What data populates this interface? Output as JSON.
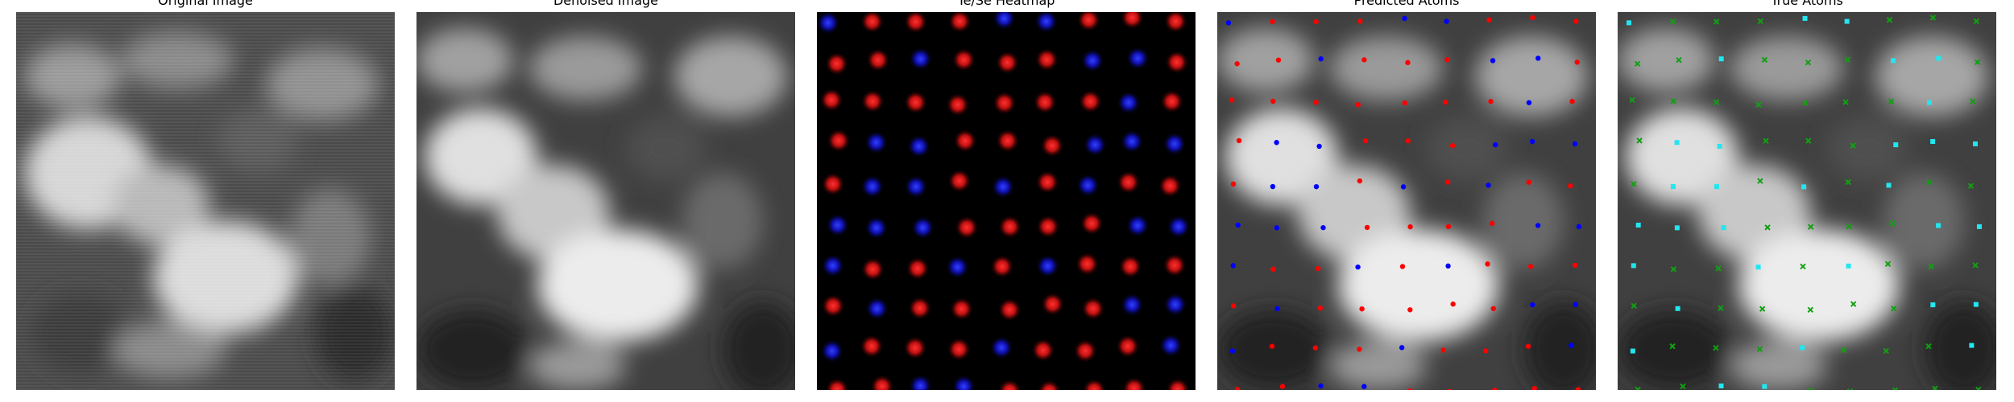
{
  "figure": {
    "panels": [
      {
        "id": "original",
        "title": "Original Image",
        "image_type": "grayscale-stm"
      },
      {
        "id": "denoised",
        "title": "Denoised Image",
        "image_type": "grayscale-stm-smoothed"
      },
      {
        "id": "heatmap",
        "title": "Te/Se Heatmap",
        "image_type": "red-blue-gaussian-heatmap"
      },
      {
        "id": "predicted",
        "title": "Predicted Atoms",
        "image_type": "overlay-dots"
      },
      {
        "id": "true",
        "title": "True Atoms",
        "image_type": "overlay-markers"
      }
    ]
  },
  "colors": {
    "te_red": "#ff2020",
    "se_blue": "#2030ff",
    "heatmap_bg": "#000000",
    "pred_red": "#ff0000",
    "pred_blue": "#0000ff",
    "true_green": "#11a011",
    "true_cyan": "#22e6f0"
  }
}
